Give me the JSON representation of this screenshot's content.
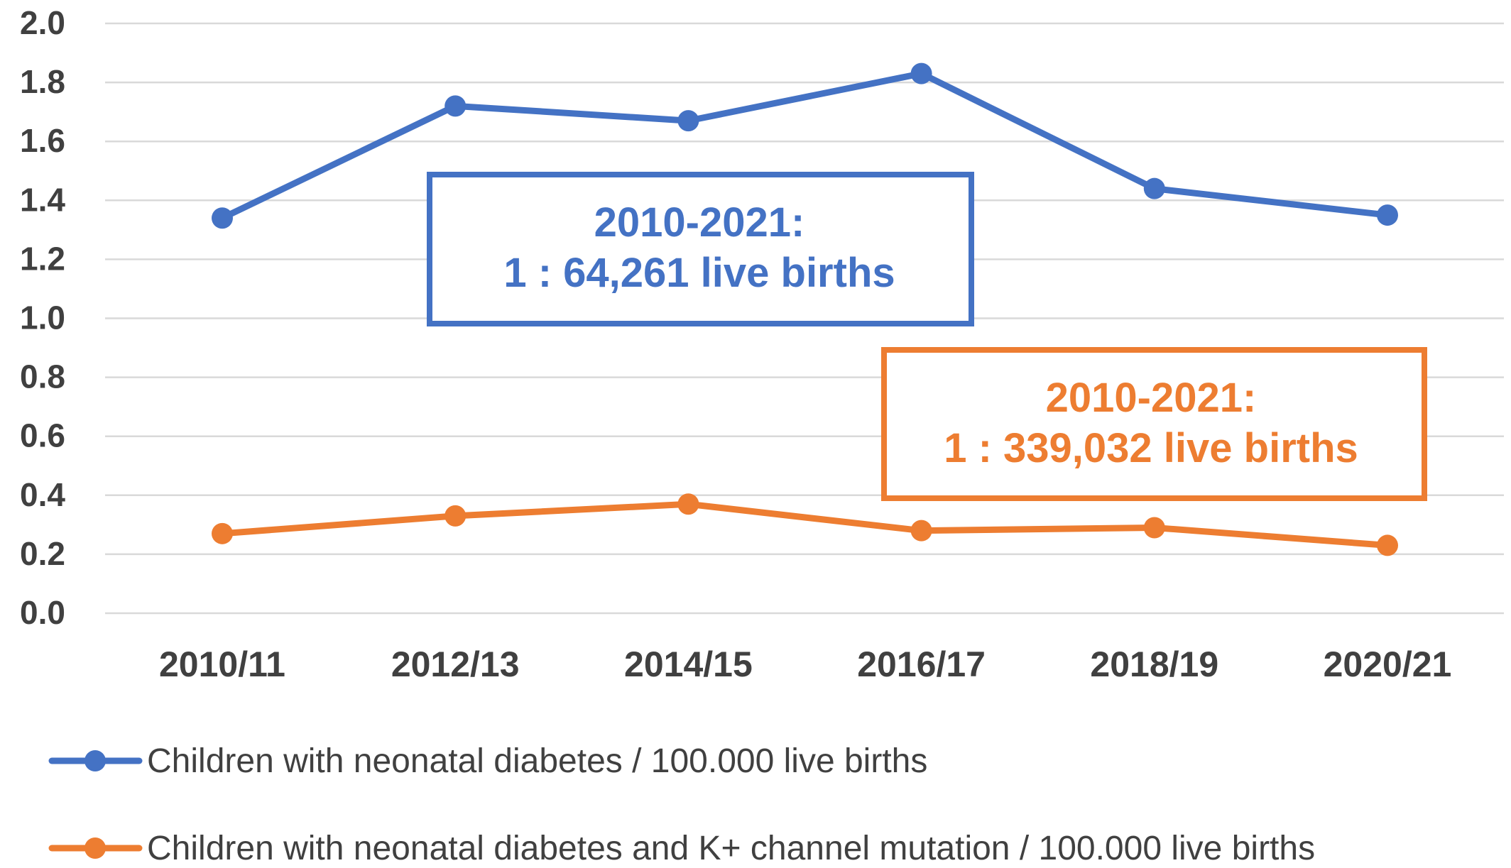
{
  "chart_data": {
    "type": "line",
    "categories": [
      "2010/11",
      "2012/13",
      "2014/15",
      "2016/17",
      "2018/19",
      "2020/21"
    ],
    "ylim": [
      0,
      2.0
    ],
    "yticks": [
      "0.0",
      "0.2",
      "0.4",
      "0.6",
      "0.8",
      "1.0",
      "1.2",
      "1.4",
      "1.6",
      "1.8",
      "2.0"
    ],
    "grid": true,
    "legend_position": "bottom-left",
    "series": [
      {
        "name": "Children with neonatal diabetes / 100.000 live births",
        "color": "#4472C4",
        "values": [
          1.34,
          1.72,
          1.67,
          1.83,
          1.44,
          1.35
        ]
      },
      {
        "name": "Children with neonatal diabetes and K+ channel mutation / 100.000 live births",
        "color": "#ED7D31",
        "values": [
          0.27,
          0.33,
          0.37,
          0.28,
          0.29,
          0.23
        ]
      }
    ],
    "annotations": [
      {
        "line1": "2010-2021:",
        "line2": "1 : 64,261  live births",
        "color": "#4472C4"
      },
      {
        "line1": "2010-2021:",
        "line2": "1 : 339,032 live births",
        "color": "#ED7D31"
      }
    ],
    "grid_color": "#D9D9D9",
    "text_color": "#404040"
  }
}
